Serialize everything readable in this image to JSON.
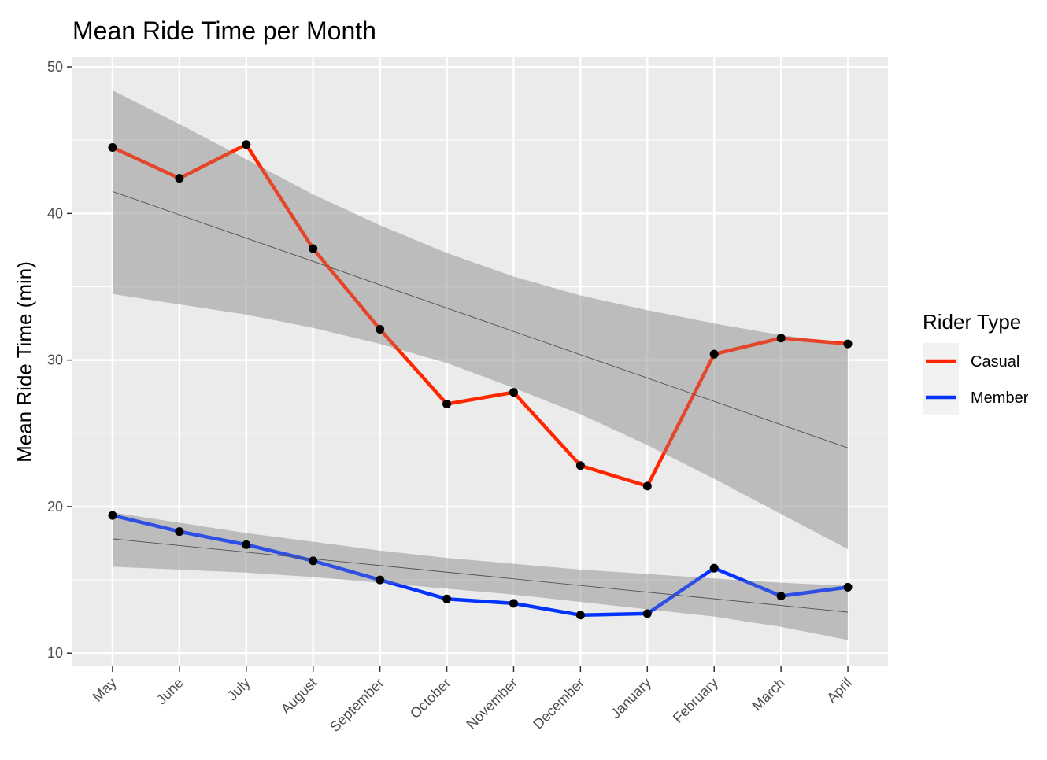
{
  "chart_data": {
    "type": "line",
    "title": "Mean Ride Time per Month",
    "xlabel": "",
    "ylabel": "Mean Ride Time (min)",
    "categories": [
      "May",
      "June",
      "July",
      "August",
      "September",
      "October",
      "November",
      "December",
      "January",
      "February",
      "March",
      "April"
    ],
    "ylim": [
      9.1,
      50.7
    ],
    "yticks": [
      10,
      20,
      30,
      40,
      50
    ],
    "grid": true,
    "legend": {
      "title": "Rider Type",
      "position": "right"
    },
    "series": [
      {
        "name": "Casual",
        "color": "#ff2600",
        "values": [
          44.5,
          42.4,
          44.7,
          37.6,
          32.1,
          27.0,
          27.8,
          22.8,
          21.4,
          30.4,
          31.5,
          31.1
        ],
        "trend": [
          41.5,
          24.0
        ],
        "band_upper": [
          48.4,
          46.1,
          43.7,
          41.3,
          39.2,
          37.3,
          35.7,
          34.4,
          33.4,
          32.5,
          31.7,
          31.1
        ],
        "band_lower": [
          34.5,
          33.8,
          33.1,
          32.2,
          31.1,
          29.8,
          28.1,
          26.3,
          24.2,
          21.9,
          19.5,
          17.1
        ]
      },
      {
        "name": "Member",
        "color": "#0433ff",
        "values": [
          19.4,
          18.3,
          17.4,
          16.3,
          15.0,
          13.7,
          13.4,
          12.6,
          12.7,
          15.8,
          13.9,
          14.5
        ],
        "trend": [
          17.8,
          12.8
        ],
        "band_upper": [
          19.6,
          18.9,
          18.2,
          17.6,
          17.0,
          16.5,
          16.1,
          15.7,
          15.4,
          15.1,
          14.8,
          14.6
        ],
        "band_lower": [
          15.9,
          15.7,
          15.5,
          15.2,
          14.8,
          14.4,
          14.0,
          13.5,
          13.0,
          12.5,
          11.8,
          10.9
        ]
      }
    ]
  }
}
